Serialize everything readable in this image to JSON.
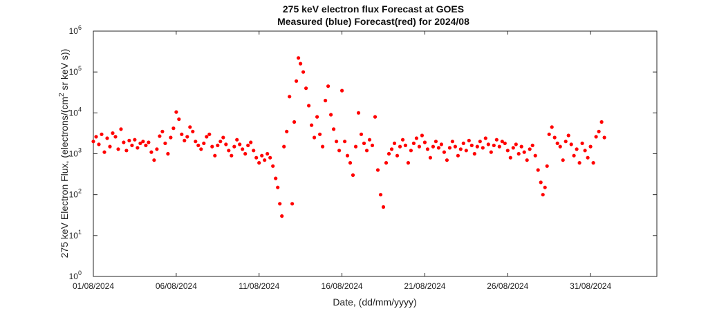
{
  "chart_data": {
    "type": "scatter",
    "title": "275 keV electron flux Forecast at GOES",
    "subtitle": "Measured (blue) Forecast(red) for 2024/08",
    "xlabel": "Date, (dd/mm/yyyy)",
    "ylabel": "275 keV Electron Flux, (electrons/(cm² sr keV s))",
    "ylabel_parts": [
      "275 keV Electron Flux, (electrons/(cm",
      "2",
      " sr keV s))"
    ],
    "yscale": "log",
    "ylim": [
      1,
      1000000
    ],
    "y_ticks": [
      {
        "value": 1,
        "base": "10",
        "exp": "0"
      },
      {
        "value": 10,
        "base": "10",
        "exp": "1"
      },
      {
        "value": 100,
        "base": "10",
        "exp": "2"
      },
      {
        "value": 1000,
        "base": "10",
        "exp": "3"
      },
      {
        "value": 10000,
        "base": "10",
        "exp": "4"
      },
      {
        "value": 100000,
        "base": "10",
        "exp": "5"
      },
      {
        "value": 1000000,
        "base": "10",
        "exp": "6"
      }
    ],
    "xlim": [
      "2024-08-01",
      "2024-09-04"
    ],
    "x_ticks": [
      {
        "date": "2024-08-01",
        "label": "01/08/2024"
      },
      {
        "date": "2024-08-06",
        "label": "06/08/2024"
      },
      {
        "date": "2024-08-11",
        "label": "11/08/2024"
      },
      {
        "date": "2024-08-16",
        "label": "16/08/2024"
      },
      {
        "date": "2024-08-21",
        "label": "21/08/2024"
      },
      {
        "date": "2024-08-26",
        "label": "26/08/2024"
      },
      {
        "date": "2024-08-31",
        "label": "31/08/2024"
      }
    ],
    "grid": false,
    "series": [
      {
        "color": "#ff0000",
        "points": [
          [
            "2024-08-01 00:00",
            2000
          ],
          [
            "2024-08-01 04:00",
            2600
          ],
          [
            "2024-08-01 08:00",
            1700
          ],
          [
            "2024-08-01 12:00",
            3000
          ],
          [
            "2024-08-01 16:00",
            1100
          ],
          [
            "2024-08-01 20:00",
            2400
          ],
          [
            "2024-08-02 00:00",
            1500
          ],
          [
            "2024-08-02 04:00",
            3200
          ],
          [
            "2024-08-02 08:00",
            2600
          ],
          [
            "2024-08-02 12:00",
            1300
          ],
          [
            "2024-08-02 16:00",
            4000
          ],
          [
            "2024-08-02 20:00",
            1900
          ],
          [
            "2024-08-03 00:00",
            1200
          ],
          [
            "2024-08-03 04:00",
            2100
          ],
          [
            "2024-08-03 08:00",
            1600
          ],
          [
            "2024-08-03 12:00",
            2200
          ],
          [
            "2024-08-03 16:00",
            1400
          ],
          [
            "2024-08-03 20:00",
            1800
          ],
          [
            "2024-08-04 00:00",
            2000
          ],
          [
            "2024-08-04 04:00",
            1600
          ],
          [
            "2024-08-04 08:00",
            1900
          ],
          [
            "2024-08-04 12:00",
            1100
          ],
          [
            "2024-08-04 16:00",
            700
          ],
          [
            "2024-08-04 20:00",
            1300
          ],
          [
            "2024-08-05 00:00",
            2700
          ],
          [
            "2024-08-05 04:00",
            3500
          ],
          [
            "2024-08-05 08:00",
            1800
          ],
          [
            "2024-08-05 12:00",
            1000
          ],
          [
            "2024-08-05 16:00",
            2500
          ],
          [
            "2024-08-05 20:00",
            4200
          ],
          [
            "2024-08-06 00:00",
            10500
          ],
          [
            "2024-08-06 04:00",
            7000
          ],
          [
            "2024-08-06 08:00",
            3000
          ],
          [
            "2024-08-06 12:00",
            2100
          ],
          [
            "2024-08-06 16:00",
            2600
          ],
          [
            "2024-08-06 20:00",
            4500
          ],
          [
            "2024-08-07 00:00",
            3500
          ],
          [
            "2024-08-07 04:00",
            2000
          ],
          [
            "2024-08-07 08:00",
            1600
          ],
          [
            "2024-08-07 12:00",
            1300
          ],
          [
            "2024-08-07 16:00",
            1800
          ],
          [
            "2024-08-07 20:00",
            2600
          ],
          [
            "2024-08-08 00:00",
            3000
          ],
          [
            "2024-08-08 04:00",
            1500
          ],
          [
            "2024-08-08 08:00",
            900
          ],
          [
            "2024-08-08 12:00",
            1600
          ],
          [
            "2024-08-08 16:00",
            2000
          ],
          [
            "2024-08-08 20:00",
            2500
          ],
          [
            "2024-08-09 00:00",
            1700
          ],
          [
            "2024-08-09 04:00",
            1200
          ],
          [
            "2024-08-09 08:00",
            900
          ],
          [
            "2024-08-09 12:00",
            1500
          ],
          [
            "2024-08-09 16:00",
            2200
          ],
          [
            "2024-08-09 20:00",
            1700
          ],
          [
            "2024-08-10 00:00",
            1300
          ],
          [
            "2024-08-10 04:00",
            1000
          ],
          [
            "2024-08-10 08:00",
            1600
          ],
          [
            "2024-08-10 12:00",
            1900
          ],
          [
            "2024-08-10 16:00",
            1200
          ],
          [
            "2024-08-10 20:00",
            800
          ],
          [
            "2024-08-11 00:00",
            600
          ],
          [
            "2024-08-11 04:00",
            900
          ],
          [
            "2024-08-11 08:00",
            700
          ],
          [
            "2024-08-11 12:00",
            1000
          ],
          [
            "2024-08-11 16:00",
            800
          ],
          [
            "2024-08-11 20:00",
            500
          ],
          [
            "2024-08-12 00:00",
            250
          ],
          [
            "2024-08-12 03:00",
            150
          ],
          [
            "2024-08-12 06:00",
            60
          ],
          [
            "2024-08-12 09:00",
            30
          ],
          [
            "2024-08-12 12:00",
            1500
          ],
          [
            "2024-08-12 16:00",
            3500
          ],
          [
            "2024-08-12 20:00",
            25000
          ],
          [
            "2024-08-13 00:00",
            60
          ],
          [
            "2024-08-13 03:00",
            6000
          ],
          [
            "2024-08-13 06:00",
            60000
          ],
          [
            "2024-08-13 09:00",
            220000
          ],
          [
            "2024-08-13 12:00",
            160000
          ],
          [
            "2024-08-13 16:00",
            100000
          ],
          [
            "2024-08-13 20:00",
            40000
          ],
          [
            "2024-08-14 00:00",
            15000
          ],
          [
            "2024-08-14 04:00",
            5000
          ],
          [
            "2024-08-14 08:00",
            2500
          ],
          [
            "2024-08-14 12:00",
            8000
          ],
          [
            "2024-08-14 16:00",
            3000
          ],
          [
            "2024-08-14 20:00",
            1500
          ],
          [
            "2024-08-15 00:00",
            20000
          ],
          [
            "2024-08-15 04:00",
            45000
          ],
          [
            "2024-08-15 08:00",
            9000
          ],
          [
            "2024-08-15 12:00",
            4000
          ],
          [
            "2024-08-15 16:00",
            2000
          ],
          [
            "2024-08-15 20:00",
            1200
          ],
          [
            "2024-08-16 00:00",
            35000
          ],
          [
            "2024-08-16 04:00",
            2000
          ],
          [
            "2024-08-16 08:00",
            900
          ],
          [
            "2024-08-16 12:00",
            600
          ],
          [
            "2024-08-16 16:00",
            300
          ],
          [
            "2024-08-16 20:00",
            1500
          ],
          [
            "2024-08-17 00:00",
            10000
          ],
          [
            "2024-08-17 04:00",
            3000
          ],
          [
            "2024-08-17 08:00",
            1800
          ],
          [
            "2024-08-17 12:00",
            1200
          ],
          [
            "2024-08-17 16:00",
            2200
          ],
          [
            "2024-08-17 20:00",
            1600
          ],
          [
            "2024-08-18 00:00",
            8000
          ],
          [
            "2024-08-18 04:00",
            400
          ],
          [
            "2024-08-18 08:00",
            100
          ],
          [
            "2024-08-18 12:00",
            50
          ],
          [
            "2024-08-18 16:00",
            600
          ],
          [
            "2024-08-18 20:00",
            1000
          ],
          [
            "2024-08-19 00:00",
            1300
          ],
          [
            "2024-08-19 04:00",
            1800
          ],
          [
            "2024-08-19 08:00",
            900
          ],
          [
            "2024-08-19 12:00",
            1500
          ],
          [
            "2024-08-19 16:00",
            2200
          ],
          [
            "2024-08-19 20:00",
            1600
          ],
          [
            "2024-08-20 00:00",
            600
          ],
          [
            "2024-08-20 04:00",
            1200
          ],
          [
            "2024-08-20 08:00",
            1800
          ],
          [
            "2024-08-20 12:00",
            2400
          ],
          [
            "2024-08-20 16:00",
            1500
          ],
          [
            "2024-08-20 20:00",
            2800
          ],
          [
            "2024-08-21 00:00",
            1900
          ],
          [
            "2024-08-21 04:00",
            1300
          ],
          [
            "2024-08-21 08:00",
            800
          ],
          [
            "2024-08-21 12:00",
            1500
          ],
          [
            "2024-08-21 16:00",
            2000
          ],
          [
            "2024-08-21 20:00",
            1400
          ],
          [
            "2024-08-22 00:00",
            1700
          ],
          [
            "2024-08-22 04:00",
            1100
          ],
          [
            "2024-08-22 08:00",
            700
          ],
          [
            "2024-08-22 12:00",
            1400
          ],
          [
            "2024-08-22 16:00",
            2000
          ],
          [
            "2024-08-22 20:00",
            1500
          ],
          [
            "2024-08-23 00:00",
            900
          ],
          [
            "2024-08-23 04:00",
            1300
          ],
          [
            "2024-08-23 08:00",
            1800
          ],
          [
            "2024-08-23 12:00",
            1200
          ],
          [
            "2024-08-23 16:00",
            2100
          ],
          [
            "2024-08-23 20:00",
            1600
          ],
          [
            "2024-08-24 00:00",
            1000
          ],
          [
            "2024-08-24 04:00",
            1500
          ],
          [
            "2024-08-24 08:00",
            2000
          ],
          [
            "2024-08-24 12:00",
            1400
          ],
          [
            "2024-08-24 16:00",
            2400
          ],
          [
            "2024-08-24 20:00",
            1700
          ],
          [
            "2024-08-25 00:00",
            1100
          ],
          [
            "2024-08-25 04:00",
            1600
          ],
          [
            "2024-08-25 08:00",
            2200
          ],
          [
            "2024-08-25 12:00",
            1500
          ],
          [
            "2024-08-25 16:00",
            2000
          ],
          [
            "2024-08-25 20:00",
            1800
          ],
          [
            "2024-08-26 00:00",
            1200
          ],
          [
            "2024-08-26 04:00",
            800
          ],
          [
            "2024-08-26 08:00",
            1400
          ],
          [
            "2024-08-26 12:00",
            1700
          ],
          [
            "2024-08-26 16:00",
            1000
          ],
          [
            "2024-08-26 20:00",
            1500
          ],
          [
            "2024-08-27 00:00",
            1100
          ],
          [
            "2024-08-27 04:00",
            700
          ],
          [
            "2024-08-27 08:00",
            1300
          ],
          [
            "2024-08-27 12:00",
            1600
          ],
          [
            "2024-08-27 16:00",
            900
          ],
          [
            "2024-08-27 20:00",
            400
          ],
          [
            "2024-08-28 00:00",
            200
          ],
          [
            "2024-08-28 03:00",
            100
          ],
          [
            "2024-08-28 06:00",
            150
          ],
          [
            "2024-08-28 09:00",
            500
          ],
          [
            "2024-08-28 12:00",
            3000
          ],
          [
            "2024-08-28 16:00",
            4500
          ],
          [
            "2024-08-28 20:00",
            2500
          ],
          [
            "2024-08-29 00:00",
            1800
          ],
          [
            "2024-08-29 04:00",
            1500
          ],
          [
            "2024-08-29 08:00",
            700
          ],
          [
            "2024-08-29 12:00",
            2000
          ],
          [
            "2024-08-29 16:00",
            2800
          ],
          [
            "2024-08-29 20:00",
            1700
          ],
          [
            "2024-08-30 00:00",
            900
          ],
          [
            "2024-08-30 04:00",
            1300
          ],
          [
            "2024-08-30 08:00",
            600
          ],
          [
            "2024-08-30 12:00",
            1800
          ],
          [
            "2024-08-30 16:00",
            1200
          ],
          [
            "2024-08-30 20:00",
            800
          ],
          [
            "2024-08-31 00:00",
            1500
          ],
          [
            "2024-08-31 04:00",
            600
          ],
          [
            "2024-08-31 08:00",
            2600
          ],
          [
            "2024-08-31 12:00",
            3500
          ],
          [
            "2024-08-31 16:00",
            6000
          ],
          [
            "2024-08-31 20:00",
            2500
          ]
        ]
      }
    ]
  }
}
